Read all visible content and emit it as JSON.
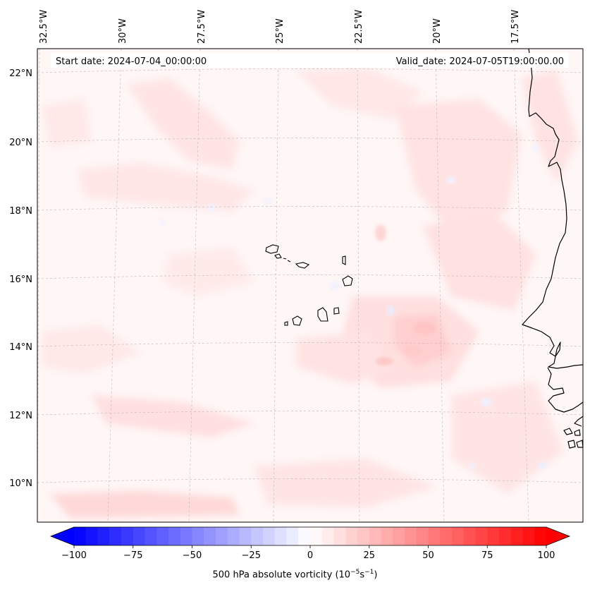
{
  "map": {
    "start_date_label": "Start date: 2024-07-04_00:00:00",
    "valid_date_label": "Valid_date: 2024-07-05T19:00:00.00",
    "longitude_labels": [
      "32.5°W",
      "30°W",
      "27.5°W",
      "25°W",
      "22.5°W",
      "20°W",
      "17.5°W"
    ],
    "latitude_labels": [
      "22°N",
      "20°N",
      "18°N",
      "16°N",
      "14°N",
      "12°N",
      "10°N"
    ],
    "field": "500 hPa absolute vorticity",
    "colormap": "bwr",
    "colors": {
      "min": "#0000ff",
      "mid": "#ffffff",
      "max": "#ff0000",
      "coast": "#000000",
      "grid": "#bbbbbb"
    }
  },
  "colorbar": {
    "label_text": "500 hPa absolute vorticity (10",
    "label_exp1": "−5",
    "label_mid": "s",
    "label_exp2": "−1",
    "label_end": ")",
    "min": -100,
    "max": 100,
    "levels": 40,
    "extend": "both",
    "tick_labels": [
      "−100",
      "−75",
      "−50",
      "−25",
      "0",
      "25",
      "50",
      "75",
      "100"
    ]
  }
}
